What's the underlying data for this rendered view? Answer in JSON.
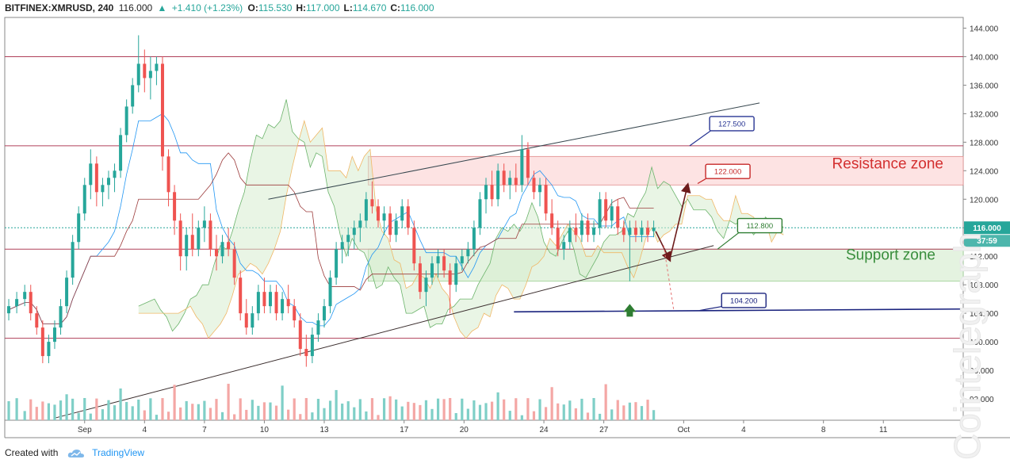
{
  "header": {
    "symbol": "BITFINEX:XMRUSD, 240",
    "price": "116.000",
    "change_arrow": "▲",
    "change": "+1.410 (+1.23%)",
    "open_label": "O:",
    "open": "115.530",
    "high_label": "H:",
    "high": "117.000",
    "low_label": "L:",
    "low": "114.670",
    "close_label": "C:",
    "close": "116.000"
  },
  "footer": {
    "created_with": "Created with",
    "brand": "TradingView"
  },
  "watermark": "Cointelegraph",
  "colors": {
    "up": "#26a69a",
    "down": "#ef5350",
    "resistance_fill": "#fde3e3",
    "resistance_text": "#d32f2f",
    "support_fill": "#e4f3e0",
    "support_text": "#388e3c",
    "price_label_bg": "#26a69a",
    "level_line": "#b0405a",
    "channel": "#3a2d2d"
  },
  "chart_data": {
    "type": "candlestick",
    "y_axis": {
      "min": 89,
      "max": 145.5,
      "ticks": [
        "144.000",
        "140.000",
        "136.000",
        "132.000",
        "128.000",
        "124.000",
        "120.000",
        "116.000",
        "112.000",
        "108.000",
        "104.000",
        "100.000",
        "96.000",
        "92.000"
      ],
      "tick_values": [
        144,
        140,
        136,
        132,
        128,
        124,
        120,
        116,
        112,
        108,
        104,
        100,
        96,
        92
      ]
    },
    "x_axis": {
      "tick_labels": [
        "Sep",
        "4",
        "7",
        "10",
        "13",
        "17",
        "20",
        "24",
        "27",
        "Oct",
        "4",
        "8",
        "11"
      ],
      "tick_days": [
        1,
        4,
        7,
        10,
        13,
        17,
        20,
        24,
        27,
        31,
        34,
        38,
        41
      ],
      "day_range": [
        -3,
        45
      ]
    },
    "last_price_label": "116.000",
    "countdown_label": "37:59",
    "horizontal_levels": [
      140.0,
      127.5,
      113.0,
      100.5
    ],
    "resistance_zone": {
      "label": "Resistance zone",
      "from": 122.0,
      "to": 126.0,
      "day_from": 15.2
    },
    "support_zone": {
      "label": "Support zone",
      "from": 108.5,
      "to": 113.0,
      "day_from": 15.2
    },
    "price_callouts": [
      "127.500",
      "122.000",
      "112.800",
      "104.200"
    ],
    "trendlines": [
      {
        "name": "channel-top",
        "points": [
          [
            10.2,
            120.0
          ],
          [
            34.8,
            133.5
          ]
        ]
      },
      {
        "name": "channel-bottom",
        "points": [
          [
            -0.5,
            89.3
          ],
          [
            32.5,
            113.5
          ]
        ]
      },
      {
        "name": "target-line",
        "points": [
          [
            22.5,
            104.2
          ],
          [
            45,
            104.6
          ]
        ]
      }
    ],
    "candles": [
      {
        "day": -2.8,
        "o": 104.0,
        "h": 106.0,
        "l": 103.0,
        "c": 105.0
      },
      {
        "day": -2.4,
        "o": 105.0,
        "h": 107.0,
        "l": 104.0,
        "c": 106.0
      },
      {
        "day": -2.0,
        "o": 106.0,
        "h": 108.0,
        "l": 105.0,
        "c": 107.0
      },
      {
        "day": -1.7,
        "o": 107.0,
        "h": 108.0,
        "l": 103.0,
        "c": 104.0
      },
      {
        "day": -1.4,
        "o": 104.0,
        "h": 105.0,
        "l": 101.0,
        "c": 102.0
      },
      {
        "day": -1.1,
        "o": 102.0,
        "h": 103.0,
        "l": 97.0,
        "c": 98.0
      },
      {
        "day": -0.8,
        "o": 98.0,
        "h": 101.0,
        "l": 97.0,
        "c": 100.0
      },
      {
        "day": -0.5,
        "o": 100.0,
        "h": 103.0,
        "l": 99.0,
        "c": 102.0
      },
      {
        "day": -0.2,
        "o": 102.0,
        "h": 106.0,
        "l": 101.0,
        "c": 105.0
      },
      {
        "day": 0.1,
        "o": 105.0,
        "h": 110.0,
        "l": 104.0,
        "c": 109.0
      },
      {
        "day": 0.4,
        "o": 109.0,
        "h": 115.0,
        "l": 108.0,
        "c": 114.0
      },
      {
        "day": 0.7,
        "o": 114.0,
        "h": 119.0,
        "l": 113.0,
        "c": 118.0
      },
      {
        "day": 1.0,
        "o": 118.0,
        "h": 123.0,
        "l": 117.0,
        "c": 122.0
      },
      {
        "day": 1.3,
        "o": 122.0,
        "h": 127.0,
        "l": 120.0,
        "c": 125.0
      },
      {
        "day": 1.6,
        "o": 125.0,
        "h": 126.0,
        "l": 119.0,
        "c": 121.0
      },
      {
        "day": 1.9,
        "o": 121.0,
        "h": 123.0,
        "l": 119.0,
        "c": 122.0
      },
      {
        "day": 2.2,
        "o": 122.0,
        "h": 124.0,
        "l": 120.0,
        "c": 123.0
      },
      {
        "day": 2.5,
        "o": 123.0,
        "h": 125.0,
        "l": 121.0,
        "c": 124.0
      },
      {
        "day": 2.8,
        "o": 124.0,
        "h": 130.0,
        "l": 123.0,
        "c": 129.0
      },
      {
        "day": 3.1,
        "o": 129.0,
        "h": 134.0,
        "l": 128.0,
        "c": 133.0
      },
      {
        "day": 3.4,
        "o": 133.0,
        "h": 137.0,
        "l": 132.0,
        "c": 136.0
      },
      {
        "day": 3.7,
        "o": 136.0,
        "h": 143.0,
        "l": 135.0,
        "c": 139.0
      },
      {
        "day": 4.0,
        "o": 139.0,
        "h": 141.0,
        "l": 135.0,
        "c": 137.0
      },
      {
        "day": 4.3,
        "o": 137.0,
        "h": 140.0,
        "l": 134.0,
        "c": 138.0
      },
      {
        "day": 4.6,
        "o": 138.0,
        "h": 140.0,
        "l": 136.0,
        "c": 139.0
      },
      {
        "day": 4.9,
        "o": 139.0,
        "h": 140.0,
        "l": 124.0,
        "c": 126.0
      },
      {
        "day": 5.2,
        "o": 126.0,
        "h": 127.0,
        "l": 119.0,
        "c": 121.0
      },
      {
        "day": 5.5,
        "o": 121.0,
        "h": 122.0,
        "l": 115.0,
        "c": 117.0
      },
      {
        "day": 5.8,
        "o": 117.0,
        "h": 118.0,
        "l": 110.0,
        "c": 112.0
      },
      {
        "day": 6.1,
        "o": 112.0,
        "h": 116.0,
        "l": 110.0,
        "c": 115.0
      },
      {
        "day": 6.4,
        "o": 115.0,
        "h": 118.0,
        "l": 112.0,
        "c": 113.0
      },
      {
        "day": 6.7,
        "o": 113.0,
        "h": 117.0,
        "l": 112.0,
        "c": 116.0
      },
      {
        "day": 7.0,
        "o": 116.0,
        "h": 119.0,
        "l": 114.0,
        "c": 117.0
      },
      {
        "day": 7.3,
        "o": 117.0,
        "h": 118.0,
        "l": 112.0,
        "c": 113.0
      },
      {
        "day": 7.6,
        "o": 113.0,
        "h": 115.0,
        "l": 110.0,
        "c": 112.0
      },
      {
        "day": 7.9,
        "o": 112.0,
        "h": 115.0,
        "l": 111.0,
        "c": 114.0
      },
      {
        "day": 8.2,
        "o": 114.0,
        "h": 116.0,
        "l": 112.0,
        "c": 113.0
      },
      {
        "day": 8.5,
        "o": 113.0,
        "h": 114.0,
        "l": 108.0,
        "c": 109.0
      },
      {
        "day": 8.8,
        "o": 109.0,
        "h": 110.0,
        "l": 103.0,
        "c": 104.0
      },
      {
        "day": 9.1,
        "o": 104.0,
        "h": 106.0,
        "l": 101.0,
        "c": 102.0
      },
      {
        "day": 9.4,
        "o": 102.0,
        "h": 105.0,
        "l": 101.0,
        "c": 104.0
      },
      {
        "day": 9.7,
        "o": 104.0,
        "h": 108.0,
        "l": 103.0,
        "c": 107.0
      },
      {
        "day": 10.0,
        "o": 107.0,
        "h": 109.0,
        "l": 104.0,
        "c": 105.0
      },
      {
        "day": 10.3,
        "o": 105.0,
        "h": 108.0,
        "l": 104.0,
        "c": 107.0
      },
      {
        "day": 10.6,
        "o": 107.0,
        "h": 108.0,
        "l": 103.0,
        "c": 104.0
      },
      {
        "day": 10.9,
        "o": 104.0,
        "h": 107.0,
        "l": 103.0,
        "c": 106.0
      },
      {
        "day": 11.2,
        "o": 106.0,
        "h": 108.0,
        "l": 104.0,
        "c": 105.0
      },
      {
        "day": 11.5,
        "o": 105.0,
        "h": 106.0,
        "l": 102.0,
        "c": 103.0
      },
      {
        "day": 11.8,
        "o": 103.0,
        "h": 104.0,
        "l": 98.0,
        "c": 99.0
      },
      {
        "day": 12.1,
        "o": 99.0,
        "h": 101.0,
        "l": 96.5,
        "c": 98.0
      },
      {
        "day": 12.4,
        "o": 98.0,
        "h": 102.0,
        "l": 97.0,
        "c": 101.0
      },
      {
        "day": 12.7,
        "o": 101.0,
        "h": 104.0,
        "l": 100.0,
        "c": 103.0
      },
      {
        "day": 13.0,
        "o": 103.0,
        "h": 106.0,
        "l": 102.0,
        "c": 105.0
      },
      {
        "day": 13.3,
        "o": 105.0,
        "h": 110.0,
        "l": 104.0,
        "c": 109.0
      },
      {
        "day": 13.6,
        "o": 109.0,
        "h": 114.0,
        "l": 108.0,
        "c": 113.0
      },
      {
        "day": 13.9,
        "o": 113.0,
        "h": 115.0,
        "l": 111.0,
        "c": 114.0
      },
      {
        "day": 14.2,
        "o": 114.0,
        "h": 116.0,
        "l": 112.0,
        "c": 115.0
      },
      {
        "day": 14.5,
        "o": 115.0,
        "h": 117.0,
        "l": 113.0,
        "c": 116.0
      },
      {
        "day": 14.8,
        "o": 116.0,
        "h": 118.0,
        "l": 114.0,
        "c": 117.0
      },
      {
        "day": 15.1,
        "o": 117.0,
        "h": 121.0,
        "l": 116.0,
        "c": 120.0
      },
      {
        "day": 15.4,
        "o": 120.0,
        "h": 122.5,
        "l": 118.0,
        "c": 119.0
      },
      {
        "day": 15.7,
        "o": 119.0,
        "h": 120.0,
        "l": 116.0,
        "c": 117.0
      },
      {
        "day": 16.0,
        "o": 117.0,
        "h": 119.0,
        "l": 115.0,
        "c": 118.0
      },
      {
        "day": 16.3,
        "o": 118.0,
        "h": 119.0,
        "l": 114.0,
        "c": 115.0
      },
      {
        "day": 16.6,
        "o": 115.0,
        "h": 118.0,
        "l": 114.0,
        "c": 117.0
      },
      {
        "day": 16.9,
        "o": 117.0,
        "h": 120.0,
        "l": 116.0,
        "c": 119.0
      },
      {
        "day": 17.2,
        "o": 119.0,
        "h": 120.0,
        "l": 115.0,
        "c": 116.0
      },
      {
        "day": 17.5,
        "o": 116.0,
        "h": 117.0,
        "l": 110.0,
        "c": 111.0
      },
      {
        "day": 17.8,
        "o": 111.0,
        "h": 112.0,
        "l": 106.0,
        "c": 107.0
      },
      {
        "day": 18.1,
        "o": 107.0,
        "h": 110.0,
        "l": 105.0,
        "c": 109.0
      },
      {
        "day": 18.4,
        "o": 109.0,
        "h": 112.0,
        "l": 108.0,
        "c": 111.0
      },
      {
        "day": 18.7,
        "o": 111.0,
        "h": 113.0,
        "l": 109.0,
        "c": 112.0
      },
      {
        "day": 19.0,
        "o": 112.0,
        "h": 113.0,
        "l": 109.0,
        "c": 110.0
      },
      {
        "day": 19.3,
        "o": 110.0,
        "h": 111.0,
        "l": 104.0,
        "c": 108.0
      },
      {
        "day": 19.6,
        "o": 108.0,
        "h": 112.0,
        "l": 107.0,
        "c": 111.0
      },
      {
        "day": 19.9,
        "o": 111.0,
        "h": 113.0,
        "l": 110.0,
        "c": 112.0
      },
      {
        "day": 20.2,
        "o": 112.0,
        "h": 114.0,
        "l": 111.0,
        "c": 113.0
      },
      {
        "day": 20.5,
        "o": 113.0,
        "h": 117.0,
        "l": 112.0,
        "c": 116.0
      },
      {
        "day": 20.8,
        "o": 116.0,
        "h": 121.0,
        "l": 115.0,
        "c": 120.0
      },
      {
        "day": 21.1,
        "o": 120.0,
        "h": 123.0,
        "l": 118.0,
        "c": 122.0
      },
      {
        "day": 21.4,
        "o": 122.0,
        "h": 124.0,
        "l": 119.0,
        "c": 120.0
      },
      {
        "day": 21.7,
        "o": 120.0,
        "h": 125.0,
        "l": 119.0,
        "c": 124.0
      },
      {
        "day": 22.0,
        "o": 124.0,
        "h": 125.0,
        "l": 121.0,
        "c": 122.0
      },
      {
        "day": 22.3,
        "o": 122.0,
        "h": 124.0,
        "l": 120.0,
        "c": 123.0
      },
      {
        "day": 22.6,
        "o": 123.0,
        "h": 125.0,
        "l": 121.0,
        "c": 122.0
      },
      {
        "day": 22.9,
        "o": 122.0,
        "h": 129.0,
        "l": 121.0,
        "c": 127.0
      },
      {
        "day": 23.2,
        "o": 127.0,
        "h": 128.0,
        "l": 122.0,
        "c": 123.0
      },
      {
        "day": 23.5,
        "o": 123.0,
        "h": 124.0,
        "l": 120.0,
        "c": 121.0
      },
      {
        "day": 23.8,
        "o": 121.0,
        "h": 123.0,
        "l": 119.0,
        "c": 122.0
      },
      {
        "day": 24.1,
        "o": 122.0,
        "h": 123.0,
        "l": 117.0,
        "c": 118.0
      },
      {
        "day": 24.4,
        "o": 118.0,
        "h": 120.0,
        "l": 115.0,
        "c": 116.0
      },
      {
        "day": 24.7,
        "o": 116.0,
        "h": 117.0,
        "l": 112.0,
        "c": 113.0
      },
      {
        "day": 25.0,
        "o": 113.0,
        "h": 115.0,
        "l": 111.5,
        "c": 114.0
      },
      {
        "day": 25.3,
        "o": 114.0,
        "h": 117.0,
        "l": 113.0,
        "c": 116.0
      },
      {
        "day": 25.6,
        "o": 116.0,
        "h": 118.0,
        "l": 114.0,
        "c": 115.0
      },
      {
        "day": 25.9,
        "o": 115.0,
        "h": 118.0,
        "l": 114.0,
        "c": 117.0
      },
      {
        "day": 26.2,
        "o": 117.0,
        "h": 118.0,
        "l": 114.0,
        "c": 115.0
      },
      {
        "day": 26.5,
        "o": 115.0,
        "h": 117.0,
        "l": 114.0,
        "c": 116.0
      },
      {
        "day": 26.8,
        "o": 116.0,
        "h": 121.0,
        "l": 115.0,
        "c": 120.0
      },
      {
        "day": 27.1,
        "o": 120.0,
        "h": 121.0,
        "l": 116.0,
        "c": 117.0
      },
      {
        "day": 27.4,
        "o": 117.0,
        "h": 120.0,
        "l": 116.0,
        "c": 119.0
      },
      {
        "day": 27.7,
        "o": 119.0,
        "h": 120.0,
        "l": 115.0,
        "c": 116.0
      },
      {
        "day": 28.0,
        "o": 116.0,
        "h": 117.0,
        "l": 114.0,
        "c": 115.0
      },
      {
        "day": 28.3,
        "o": 115.0,
        "h": 117.0,
        "l": 108.5,
        "c": 116.0
      },
      {
        "day": 28.6,
        "o": 116.0,
        "h": 117.0,
        "l": 114.0,
        "c": 115.0
      },
      {
        "day": 28.9,
        "o": 115.0,
        "h": 117.0,
        "l": 114.0,
        "c": 116.0
      },
      {
        "day": 29.2,
        "o": 116.0,
        "h": 117.0,
        "l": 114.0,
        "c": 115.0
      },
      {
        "day": 29.5,
        "o": 115.53,
        "h": 117.0,
        "l": 114.67,
        "c": 116.0
      }
    ]
  }
}
